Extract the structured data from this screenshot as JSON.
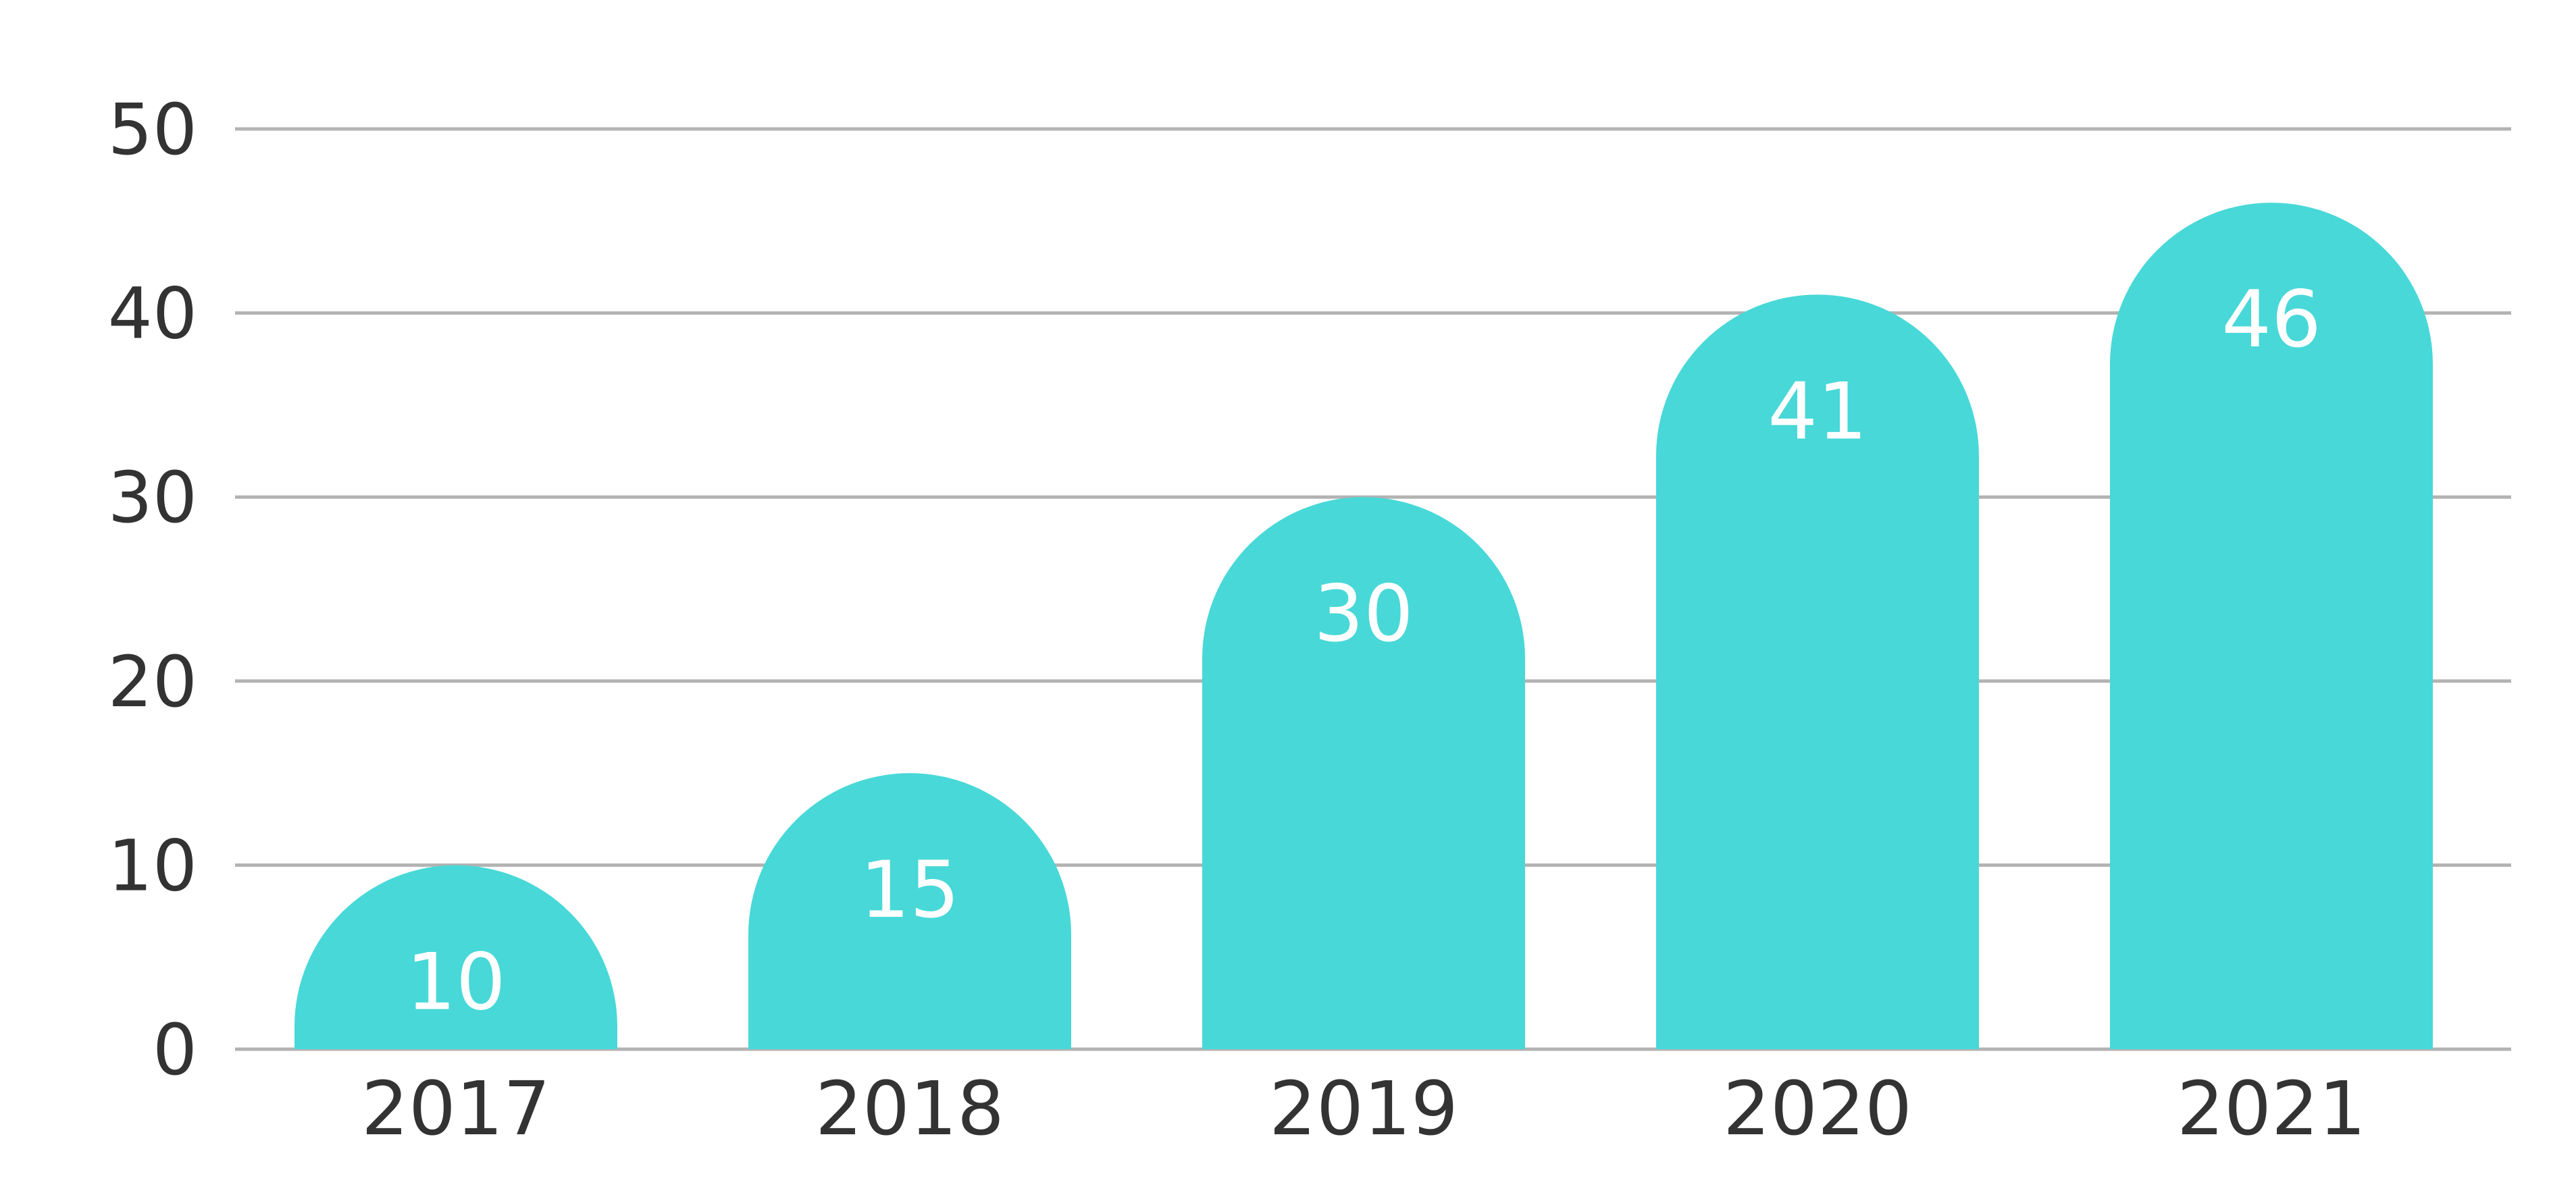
{
  "chart_data": {
    "type": "bar",
    "categories": [
      "2017",
      "2018",
      "2019",
      "2020",
      "2021"
    ],
    "values": [
      10,
      15,
      30,
      41,
      46
    ],
    "data_labels": [
      "10",
      "15",
      "30",
      "41",
      "46"
    ],
    "yticks": [
      0,
      10,
      20,
      30,
      40,
      50
    ],
    "ylim": [
      0,
      50
    ],
    "title": "",
    "xlabel": "",
    "ylabel": "",
    "grid": true,
    "legend": "none",
    "bar_color": "#48D8D8",
    "bar_style": "rounded-top"
  }
}
